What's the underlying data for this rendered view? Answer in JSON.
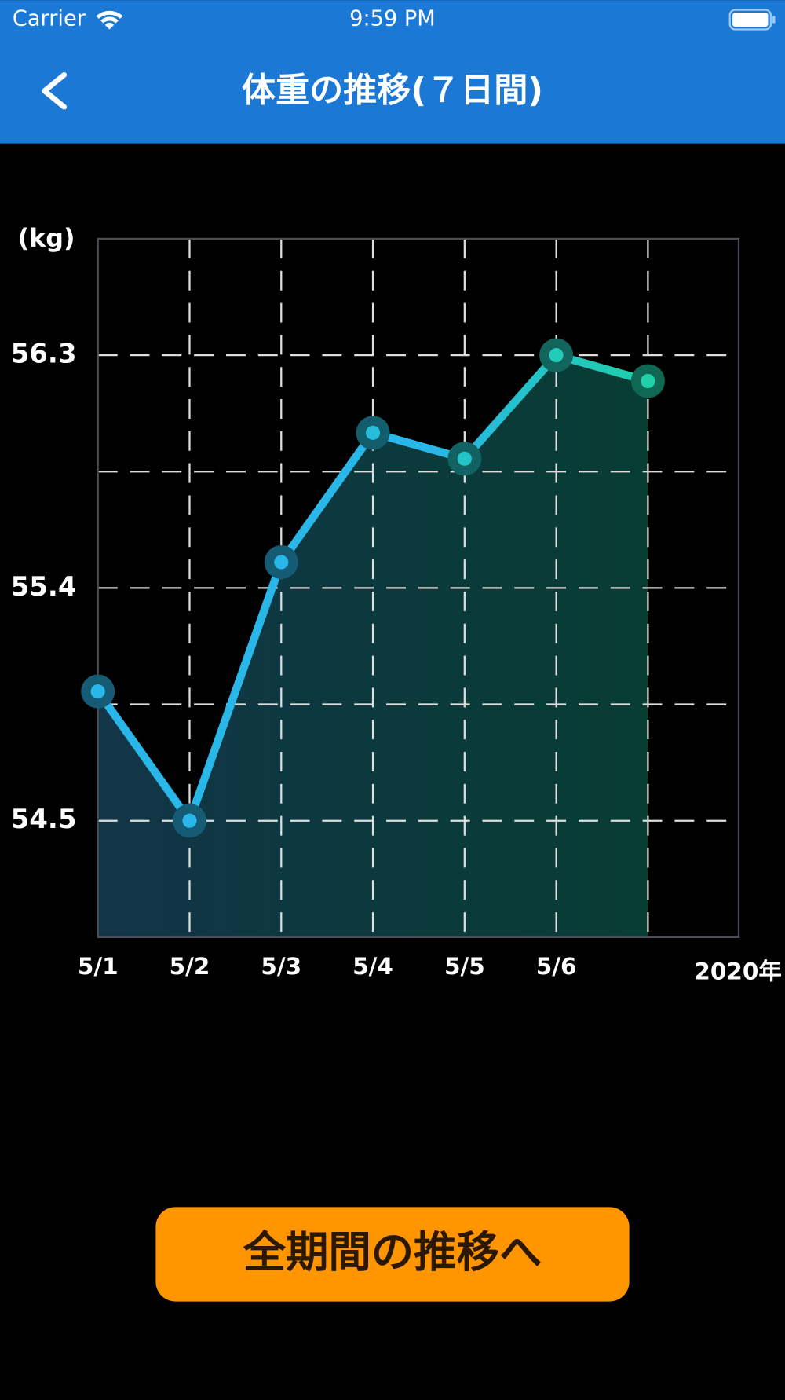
{
  "status_bar": {
    "carrier": "Carrier",
    "time": "9:59 PM"
  },
  "header": {
    "title": "体重の推移(７日間)"
  },
  "chart_data": {
    "type": "line",
    "y_label": "(kg)",
    "x_label": "2020年",
    "categories": [
      "5/1",
      "5/2",
      "5/3",
      "5/4",
      "5/5",
      "5/6",
      null
    ],
    "series": [
      {
        "name": "weight",
        "color": "#29b6e8",
        "end_color": "#1fd0a8",
        "values": [
          55.0,
          54.5,
          55.5,
          56.0,
          55.9,
          56.3,
          56.2
        ]
      }
    ],
    "ylim": [
      54.05,
      56.75
    ],
    "yticks": [
      54.5,
      55.4,
      56.3
    ],
    "y_minor_ticks": [
      54.95,
      55.85
    ],
    "grid": true,
    "area": true
  },
  "button": {
    "label": "全期間の推移へ"
  }
}
